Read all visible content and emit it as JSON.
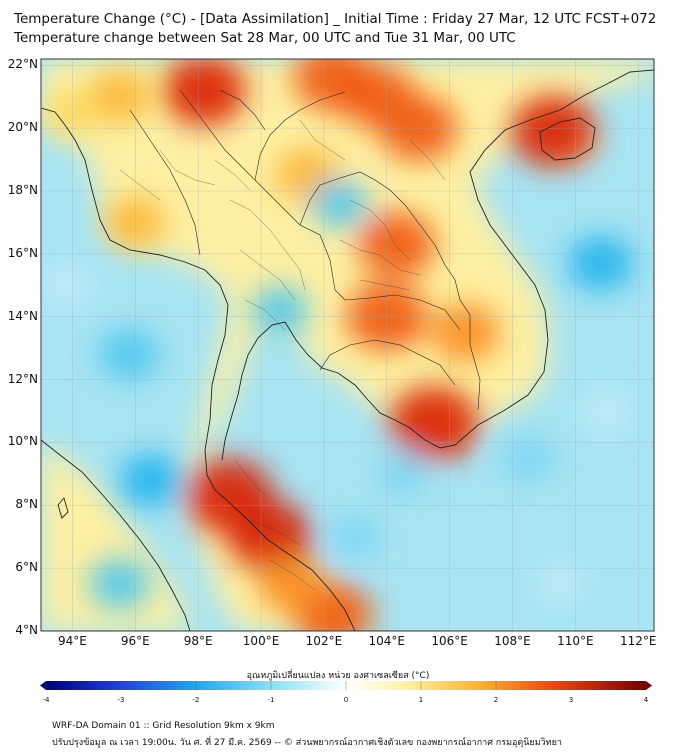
{
  "header": {
    "title_line1": "Temperature Change (°C) - [Data Assimilation] _ Initial Time : Friday 27 Mar, 12 UTC FCST+072",
    "title_line2": "Temperature change between Sat 28 Mar, 00 UTC and Tue 31 Mar, 00 UTC"
  },
  "map": {
    "lat_labels": [
      "22°N",
      "20°N",
      "18°N",
      "16°N",
      "14°N",
      "12°N",
      "10°N",
      "8°N",
      "6°N",
      "4°N"
    ],
    "lon_labels": [
      "94°E",
      "96°E",
      "98°E",
      "100°E",
      "102°E",
      "104°E",
      "106°E",
      "108°E",
      "110°E",
      "112°E"
    ],
    "lat_range": [
      4,
      22.2
    ],
    "lon_range": [
      93,
      112.5
    ],
    "grid": true,
    "hotspots": [
      {
        "lon": 98.2,
        "lat": 21.2,
        "value": 2.6
      },
      {
        "lon": 102.3,
        "lat": 21.6,
        "value": 2.4
      },
      {
        "lon": 103.7,
        "lat": 21.0,
        "value": 2.2
      },
      {
        "lon": 105.0,
        "lat": 20.0,
        "value": 2.3
      },
      {
        "lon": 109.3,
        "lat": 19.9,
        "value": 2.7
      },
      {
        "lon": 104.3,
        "lat": 16.3,
        "value": 2.3
      },
      {
        "lon": 104.0,
        "lat": 14.0,
        "value": 2.5
      },
      {
        "lon": 105.5,
        "lat": 10.6,
        "value": 2.9
      },
      {
        "lon": 99.0,
        "lat": 8.3,
        "value": 2.9
      },
      {
        "lon": 100.3,
        "lat": 7.0,
        "value": 2.7
      },
      {
        "lon": 102.3,
        "lat": 4.5,
        "value": 2.3
      },
      {
        "lon": 101.5,
        "lat": 18.5,
        "value": 1.6
      },
      {
        "lon": 106.5,
        "lat": 13.5,
        "value": 1.8
      },
      {
        "lon": 95.5,
        "lat": 21.0,
        "value": 1.4
      },
      {
        "lon": 96.0,
        "lat": 17.0,
        "value": 1.3
      },
      {
        "lon": 101.0,
        "lat": 5.5,
        "value": 1.8
      },
      {
        "lon": 94.0,
        "lat": 20.5,
        "value": 0.9
      }
    ],
    "coldspots": [
      {
        "lon": 110.8,
        "lat": 15.7,
        "value": -1.6
      },
      {
        "lon": 100.6,
        "lat": 14.2,
        "value": -1.2
      },
      {
        "lon": 95.8,
        "lat": 12.8,
        "value": -1.4
      },
      {
        "lon": 96.5,
        "lat": 8.8,
        "value": -1.5
      },
      {
        "lon": 95.5,
        "lat": 5.5,
        "value": -1.4
      },
      {
        "lon": 103.0,
        "lat": 7.0,
        "value": -1.0
      },
      {
        "lon": 108.5,
        "lat": 9.5,
        "value": -1.1
      },
      {
        "lon": 104.5,
        "lat": 9.0,
        "value": -0.9
      },
      {
        "lon": 102.5,
        "lat": 17.6,
        "value": -1.2
      },
      {
        "lon": 111.0,
        "lat": 11.0,
        "value": -0.8
      },
      {
        "lon": 93.8,
        "lat": 15.0,
        "value": -0.8
      },
      {
        "lon": 109.5,
        "lat": 5.5,
        "value": -0.6
      }
    ],
    "colors": {
      "ocean_base": "#a8e4f2",
      "land_base": "#fdf3a8",
      "coast": "#222222"
    }
  },
  "colorbar": {
    "label": "อุณหภูมิเปลี่ยนแปลง หน่วย องศาเซลเซียส (°C)",
    "ticks": [
      "-4",
      "-3",
      "-2",
      "-1",
      "0",
      "1",
      "2",
      "3",
      "4"
    ],
    "range": [
      -4,
      4
    ]
  },
  "footer": {
    "line1": "WRF-DA Domain 01 :: Grid Resolution 9km x 9km",
    "line2": "ปรับปรุงข้อมูล ณ เวลา 19:00น. วัน ศ. ที่ 27 มี.ค. 2569 -- © ส่วนพยากรณ์อากาศเชิงตัวเลข กองพยากรณ์อากาศ กรมอุตุนิยมวิทยา"
  }
}
